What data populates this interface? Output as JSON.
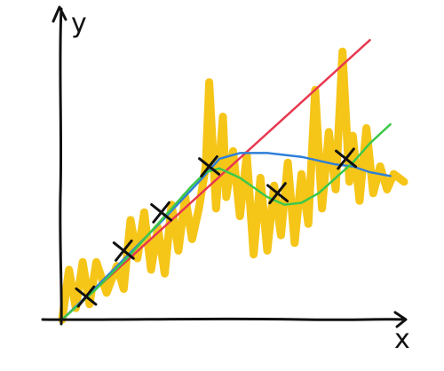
{
  "chart_data": {
    "type": "line",
    "title": "",
    "xlabel": "x",
    "ylabel": "y",
    "xlim": [
      0,
      10
    ],
    "ylim": [
      0,
      8
    ],
    "grid": false,
    "legend": "none",
    "series": [
      {
        "color": "#f5c518",
        "style": "noisy-data",
        "x": [
          0.0,
          0.2,
          0.4,
          0.6,
          0.8,
          1.0,
          1.3,
          1.6,
          1.8,
          2.0,
          2.2,
          2.4,
          2.6,
          2.8,
          3.0,
          3.2,
          3.4,
          3.6,
          3.8,
          4.0,
          4.2,
          4.3,
          4.5,
          4.7,
          4.8,
          5.0,
          5.2,
          5.4,
          5.6,
          5.8,
          6.0,
          6.2,
          6.4,
          6.6,
          6.8,
          7.0,
          7.2,
          7.4,
          7.6,
          7.8,
          8.0,
          8.2,
          8.4,
          8.5,
          8.7,
          8.9,
          9.1,
          9.3,
          9.5,
          9.7,
          10.0
        ],
        "y": [
          0.0,
          1.3,
          0.3,
          1.5,
          0.4,
          1.5,
          0.7,
          1.4,
          0.8,
          2.6,
          1.6,
          2.8,
          1.3,
          2.4,
          1.2,
          3.0,
          1.8,
          3.2,
          2.1,
          2.9,
          4.0,
          6.2,
          2.9,
          5.3,
          3.2,
          4.4,
          2.7,
          4.3,
          1.7,
          3.7,
          1.8,
          3.5,
          2.2,
          4.1,
          2.0,
          3.8,
          2.5,
          6.0,
          2.9,
          4.9,
          3.4,
          7.0,
          3.6,
          4.8,
          3.1,
          5.0,
          3.3,
          4.0,
          3.4,
          3.8,
          3.6
        ]
      },
      {
        "color": "#e8384f",
        "style": "line",
        "x": [
          0.0,
          9.0
        ],
        "y": [
          0.0,
          7.3
        ]
      },
      {
        "color": "#2f7fd8",
        "style": "line",
        "x": [
          0.0,
          1.0,
          2.0,
          3.0,
          4.0,
          4.6,
          5.2,
          6.0,
          7.0,
          8.0,
          8.5,
          9.0,
          9.6
        ],
        "y": [
          0.0,
          0.85,
          1.75,
          2.65,
          3.6,
          4.2,
          4.35,
          4.35,
          4.25,
          4.05,
          4.0,
          3.85,
          3.75
        ]
      },
      {
        "color": "#3cc84b",
        "style": "line",
        "x": [
          0.0,
          1.0,
          2.0,
          3.0,
          3.8,
          4.2,
          4.6,
          5.2,
          6.0,
          6.5,
          7.0,
          7.5,
          8.0,
          8.5,
          9.0,
          9.6
        ],
        "y": [
          0.0,
          0.8,
          1.7,
          2.7,
          3.5,
          3.85,
          3.95,
          3.7,
          3.2,
          3.0,
          3.05,
          3.3,
          3.7,
          4.1,
          4.6,
          5.1
        ]
      }
    ],
    "markers": {
      "symbol": "x",
      "color": "#111111",
      "x": [
        0.7,
        1.8,
        2.9,
        4.3,
        6.3,
        8.3
      ],
      "y": [
        0.6,
        1.8,
        2.8,
        4.0,
        3.3,
        4.2
      ]
    }
  }
}
